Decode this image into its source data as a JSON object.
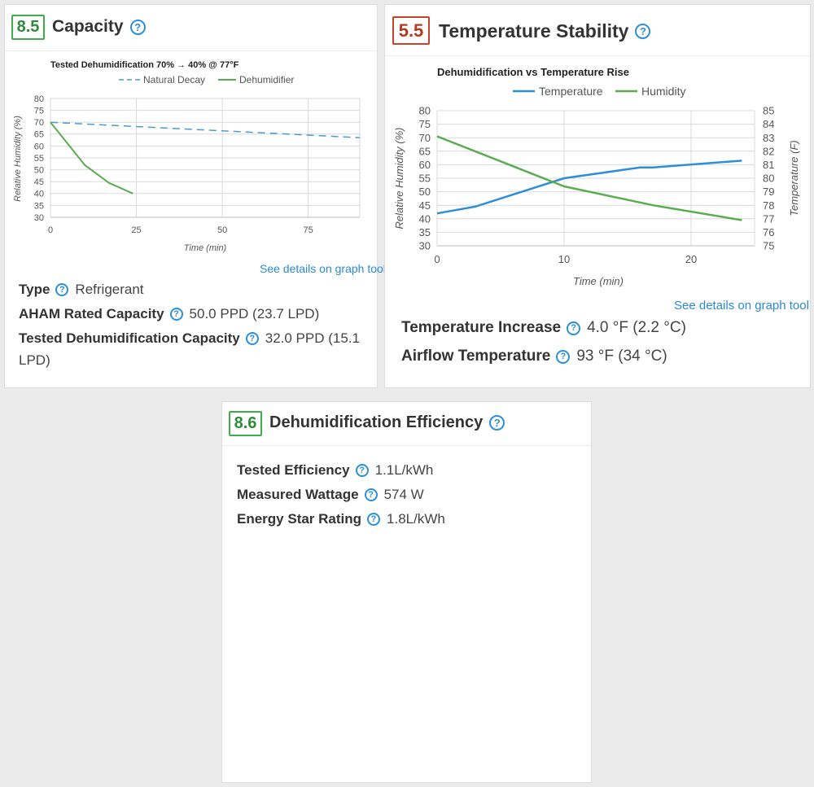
{
  "capacity": {
    "score": "8.5",
    "title": "Capacity",
    "help_icon": "question-circle-icon",
    "see_details": "See details on graph tool",
    "specs": [
      {
        "label": "Type",
        "value": "Refrigerant"
      },
      {
        "label": "AHAM Rated Capacity",
        "value": "50.0 PPD (23.7 LPD)"
      },
      {
        "label": "Tested Dehumidification Capacity",
        "value": "32.0 PPD (15.1",
        "value_cont": "LPD)"
      }
    ]
  },
  "stability": {
    "score": "5.5",
    "title": "Temperature Stability",
    "see_details": "See details on graph tool",
    "specs": [
      {
        "label": "Temperature Increase",
        "value": "4.0 °F (2.2 °C)"
      },
      {
        "label": "Airflow Temperature",
        "value": "93 °F (34 °C)"
      }
    ]
  },
  "efficiency": {
    "score": "8.6",
    "title": "Dehumidification Efficiency",
    "specs": [
      {
        "label": "Tested Efficiency",
        "value": "1.1L/kWh"
      },
      {
        "label": "Measured Wattage",
        "value": "574 W"
      },
      {
        "label": "Energy Star Rating",
        "value": "1.8L/kWh"
      }
    ]
  },
  "colors": {
    "green": "#3fae4a",
    "red": "#c8432a",
    "blue": "#2d8fd6",
    "link": "#2a8ad4"
  },
  "chart_data": [
    {
      "type": "line",
      "title": "Tested Dehumidification 70% → 40% @ 77°F",
      "xlabel": "Time (min)",
      "ylabel": "Relative Humidity (%)",
      "xlim": [
        0,
        90
      ],
      "ylim": [
        30,
        80
      ],
      "xticks": [
        0,
        25,
        50,
        75
      ],
      "yticks": [
        30,
        35,
        40,
        45,
        50,
        55,
        60,
        65,
        70,
        75,
        80
      ],
      "grid": true,
      "legend": "top",
      "series": [
        {
          "name": "Natural Decay",
          "style": "dashed",
          "color": "#4a9ad6",
          "x": [
            0,
            90
          ],
          "y": [
            70,
            63.5
          ]
        },
        {
          "name": "Dehumidifier",
          "style": "solid",
          "color": "#5aac50",
          "x": [
            0,
            10,
            17,
            24
          ],
          "y": [
            70,
            52,
            44.5,
            40
          ]
        }
      ]
    },
    {
      "type": "line",
      "title": "Dehumidification vs Temperature Rise",
      "xlabel": "Time (min)",
      "ylabel": "Relative Humidity (%)",
      "y2label": "Temperature (F)",
      "xlim": [
        0,
        25
      ],
      "ylim": [
        30,
        80
      ],
      "y2lim": [
        75,
        85
      ],
      "xticks": [
        0,
        10,
        20
      ],
      "yticks": [
        30,
        35,
        40,
        45,
        50,
        55,
        60,
        65,
        70,
        75,
        80
      ],
      "y2ticks": [
        75,
        76,
        77,
        78,
        79,
        80,
        81,
        82,
        83,
        84,
        85
      ],
      "grid": true,
      "legend": "top",
      "series": [
        {
          "name": "Temperature",
          "axis": "right",
          "color": "#2d8fd6",
          "x": [
            0,
            3,
            10,
            16,
            17,
            24
          ],
          "y": [
            77.4,
            77.9,
            80.0,
            80.8,
            80.8,
            81.3
          ]
        },
        {
          "name": "Humidity",
          "axis": "left",
          "color": "#5aac50",
          "x": [
            0,
            10,
            17,
            24
          ],
          "y": [
            70.5,
            52.0,
            45.0,
            39.5
          ]
        }
      ]
    }
  ]
}
